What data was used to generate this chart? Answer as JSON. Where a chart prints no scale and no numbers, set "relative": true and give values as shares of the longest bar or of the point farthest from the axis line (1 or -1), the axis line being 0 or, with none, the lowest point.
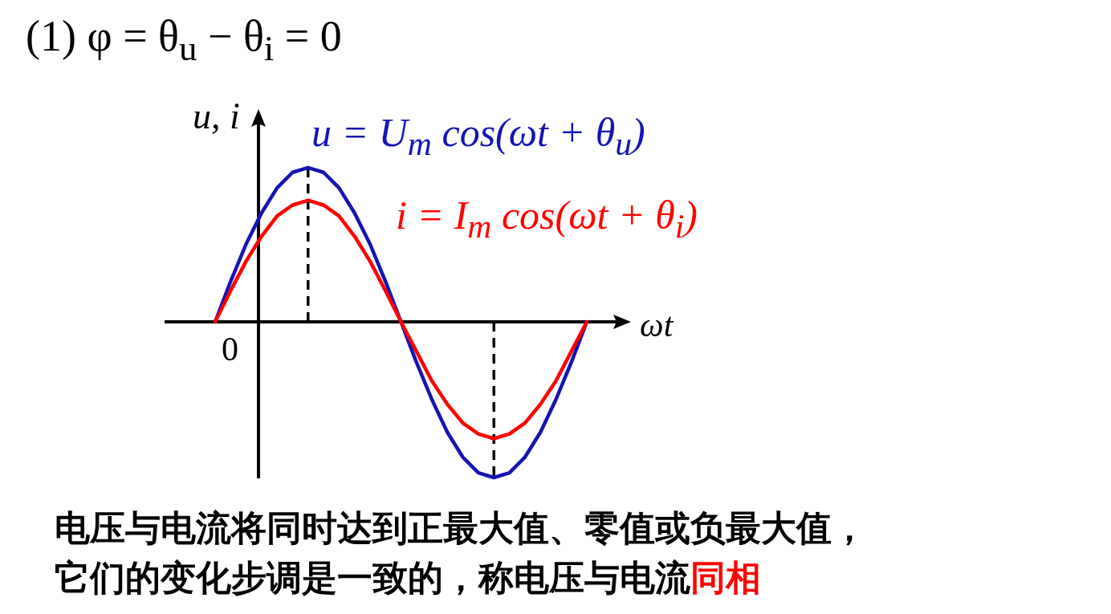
{
  "chart_data": {
    "type": "line",
    "relative": true,
    "title": "(1)  φ = θ$_{u}$ − θ$_{i}$ = 0",
    "xlabel": "ωt",
    "ylabel": "u, i",
    "categories": [
      null,
      null,
      null,
      null,
      null,
      null,
      null,
      null,
      null,
      null,
      null,
      null,
      null,
      null,
      null,
      null,
      null,
      null,
      null,
      null,
      null,
      null,
      null,
      null,
      null
    ],
    "series": [
      {
        "name": "u = U$_{m}$ cos(ωt + θ$_{u}$)",
        "color": "#1414b4",
        "values": [
          0,
          0.26,
          0.5,
          0.7,
          0.86,
          0.96,
          0.99,
          0.96,
          0.86,
          0.7,
          0.5,
          0.26,
          0,
          -0.26,
          -0.5,
          -0.71,
          -0.87,
          -0.97,
          -1,
          -0.97,
          -0.87,
          -0.71,
          -0.5,
          -0.26,
          0
        ]
      },
      {
        "name": "i = I$_{m}$ cos(ωt + θ$_{i}$)",
        "color": "#ff0000",
        "values": [
          0,
          0.2,
          0.39,
          0.55,
          0.68,
          0.75,
          0.78,
          0.75,
          0.68,
          0.55,
          0.39,
          0.2,
          0,
          -0.19,
          -0.38,
          -0.53,
          -0.65,
          -0.72,
          -0.75,
          -0.72,
          -0.65,
          -0.53,
          -0.38,
          -0.19,
          0
        ]
      }
    ],
    "marker": "none",
    "line_style": "solid",
    "annotations": [
      "0",
      "电压与电流将同时达到正最大值、零值或负最大值，",
      "它们的变化步调是一致的，称电压与电流",
      "同相"
    ]
  }
}
